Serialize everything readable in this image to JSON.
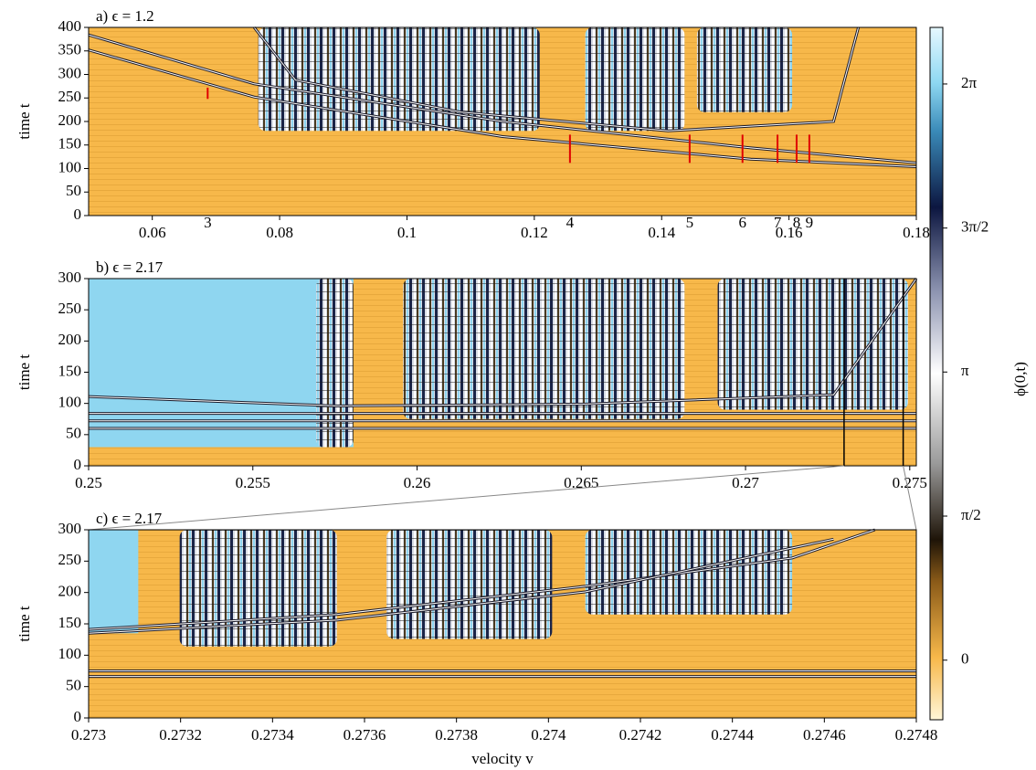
{
  "chart_data": [
    {
      "type": "heatmap",
      "title": "a) ϵ = 1.2",
      "ylabel": "time t",
      "xlim": [
        0.05,
        0.18
      ],
      "xticks": [
        0.06,
        0.08,
        0.1,
        0.12,
        0.14,
        0.16,
        0.18
      ],
      "ylim": [
        0,
        400
      ],
      "yticks": [
        0,
        50,
        100,
        150,
        200,
        250,
        300,
        350,
        400
      ],
      "markers": {
        "color": "#e00000",
        "x": [
          0.0687,
          0.1256,
          0.1444,
          0.1527,
          0.1582,
          0.1612,
          0.1632
        ],
        "labels": [
          "3",
          "4",
          "5",
          "6",
          "7",
          "8",
          "9"
        ]
      }
    },
    {
      "type": "heatmap",
      "title": "b) ϵ = 2.17",
      "ylabel": "time t",
      "xlim": [
        0.25,
        0.2752
      ],
      "xticks": [
        0.25,
        0.255,
        0.26,
        0.265,
        0.27,
        0.275
      ],
      "ylim": [
        0,
        300
      ],
      "yticks": [
        0,
        50,
        100,
        150,
        200,
        250,
        300
      ],
      "vlines": [
        0.273,
        0.2748
      ]
    },
    {
      "type": "heatmap",
      "title": "c) ϵ = 2.17",
      "ylabel": "time t",
      "xlabel": "velocity v",
      "xlim": [
        0.273,
        0.2748
      ],
      "xticks": [
        0.273,
        0.2732,
        0.2734,
        0.2736,
        0.2738,
        0.274,
        0.2742,
        0.2744,
        0.2746,
        0.2748
      ],
      "ylim": [
        0,
        300
      ],
      "yticks": [
        0,
        50,
        100,
        150,
        200,
        250,
        300
      ]
    },
    {
      "type": "colorbar",
      "label": "ϕ(0,t)",
      "ylim": [
        -0.65,
        6.9
      ],
      "yticks": [
        0,
        {
          "value": 1.571,
          "label": "π/2"
        },
        {
          "value": 3.142,
          "label": "π"
        },
        {
          "value": 4.712,
          "label": "3π/2"
        },
        {
          "value": 6.283,
          "label": "2π"
        }
      ]
    }
  ]
}
